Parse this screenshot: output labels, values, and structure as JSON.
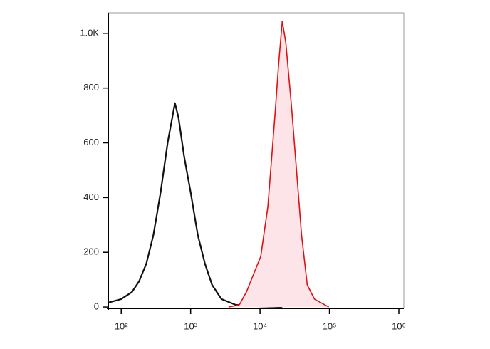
{
  "chart_data": {
    "type": "histogram-overlay",
    "xscale": "log",
    "xlim": [
      65,
      1180000
    ],
    "xticks": [
      {
        "value": 100,
        "label": "10²"
      },
      {
        "value": 1000,
        "label": "10³"
      },
      {
        "value": 10000,
        "label": "10⁴"
      },
      {
        "value": 100000,
        "label": "10⁵"
      },
      {
        "value": 1000000,
        "label": "10⁶"
      }
    ],
    "ylim": [
      -5,
      1075
    ],
    "yticks": [
      0,
      200,
      400,
      600,
      800,
      {
        "value": 1000,
        "label": "1.0K"
      }
    ],
    "series": [
      {
        "color": "#111111",
        "fill": null,
        "x": [
          65,
          100,
          143,
          181,
          230,
          291,
          369,
          468,
          593,
          668,
          807,
          1000,
          1268,
          1607,
          2037,
          2775,
          4456,
          9100,
          20900
        ],
        "values": [
          16,
          29,
          55,
          94,
          159,
          263,
          419,
          602,
          745,
          693,
          549,
          419,
          263,
          159,
          81,
          29,
          8,
          3,
          0
        ]
      },
      {
        "color": "#e01010",
        "fill": "#fde4e8",
        "x": [
          3516,
          5023,
          6368,
          8070,
          10230,
          12970,
          16440,
          18530,
          20880,
          23500,
          28420,
          33600,
          39630,
          47860,
          60750,
          97700
        ],
        "values": [
          0,
          8,
          55,
          120,
          185,
          367,
          706,
          888,
          1044,
          966,
          732,
          497,
          263,
          81,
          29,
          0
        ]
      }
    ]
  }
}
